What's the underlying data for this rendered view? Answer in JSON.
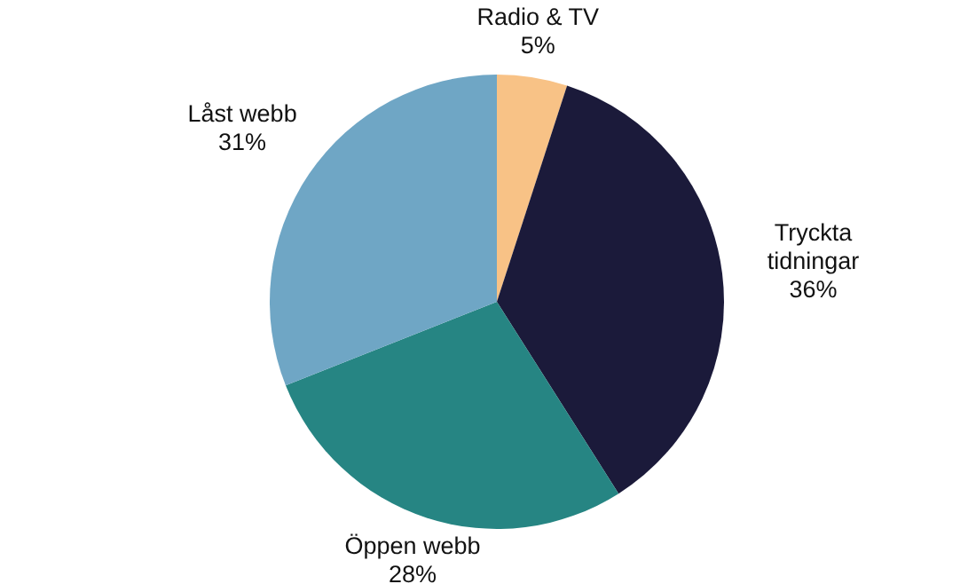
{
  "chart_data": {
    "type": "pie",
    "categories": [
      "Radio & TV",
      "Tryckta tidningar",
      "Öppen webb",
      "Låst webb"
    ],
    "values": [
      5,
      36,
      28,
      31
    ],
    "value_labels": [
      "5%",
      "36%",
      "28%",
      "31%"
    ],
    "colors": [
      "#f8c286",
      "#1b1a3a",
      "#268583",
      "#6fa6c5"
    ]
  }
}
